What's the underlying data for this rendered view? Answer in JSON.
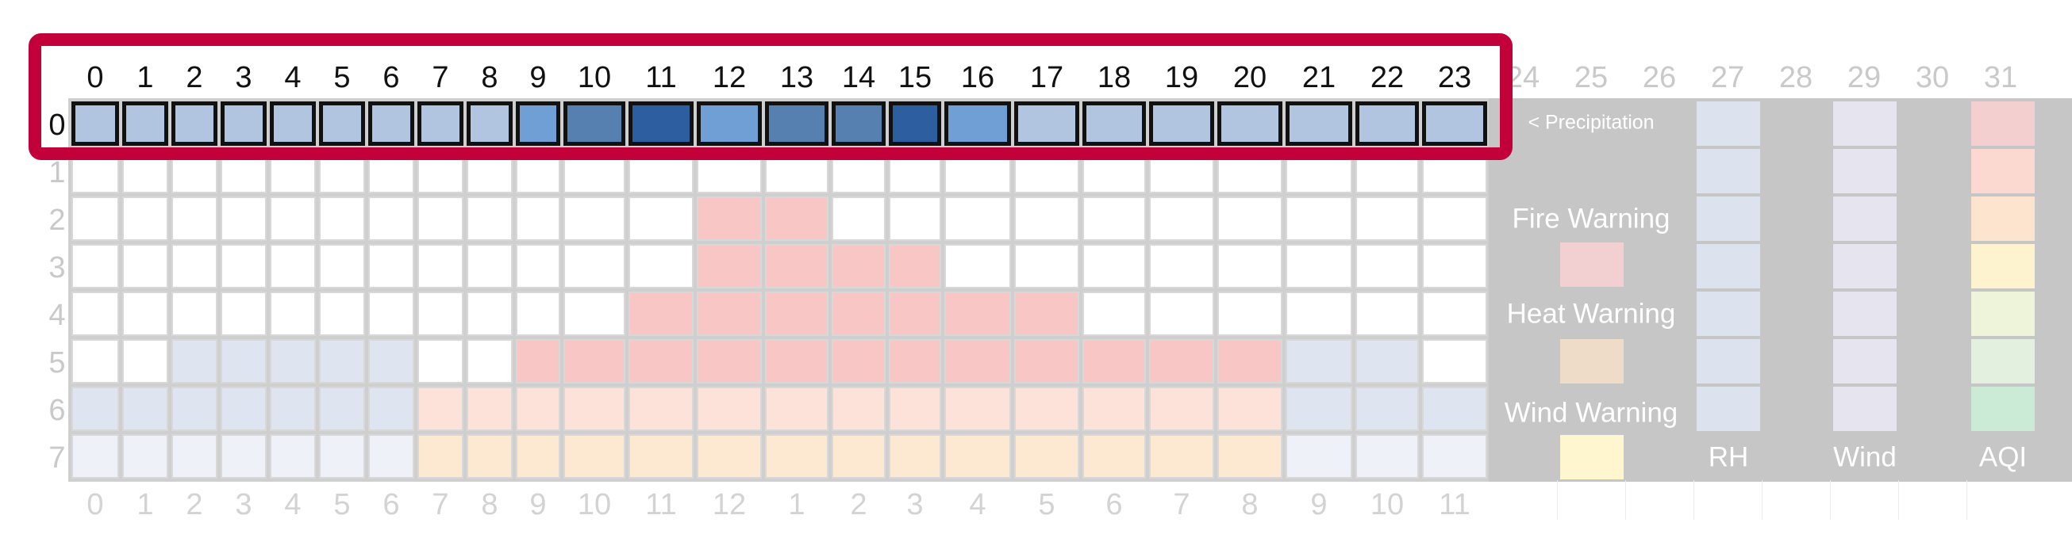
{
  "grid": {
    "columns": 24,
    "rows": 8,
    "top_header": [
      "0",
      "1",
      "2",
      "3",
      "4",
      "5",
      "6",
      "7",
      "8",
      "9",
      "10",
      "11",
      "12",
      "13",
      "14",
      "15",
      "16",
      "17",
      "18",
      "19",
      "20",
      "21",
      "22",
      "23"
    ],
    "row_labels": [
      "0",
      "1",
      "2",
      "3",
      "4",
      "5",
      "6",
      "7"
    ],
    "bottom_labels": [
      "0",
      "1",
      "2",
      "3",
      "4",
      "5",
      "6",
      "7",
      "8",
      "9",
      "10",
      "11",
      "12",
      "1",
      "2",
      "3",
      "4",
      "5",
      "6",
      "7",
      "8",
      "9",
      "10",
      "11"
    ],
    "highlighted_row": 0,
    "precipitation_levels": [
      1,
      1,
      1,
      1,
      1,
      1,
      1,
      1,
      1,
      2,
      3,
      4,
      2,
      3,
      3,
      4,
      2,
      1,
      1,
      1,
      1,
      1,
      1,
      1
    ],
    "precip_colors": [
      "#ffffff",
      "#b2c5e0",
      "#6f9fd4",
      "#5580b0",
      "#2d5fa0"
    ],
    "row_fills": [
      null,
      "WWWWWWWWWWWWWWWWWWWWWWWW",
      "WWWWWWWWWWWWFFWWWWWWWWWW",
      "WWWWWWWWWWWWFFFFWWWWWWWW",
      "WWWWWWWWWWWFFFFFFFWWWWWW",
      "WWBBBBBWWFFFFFFFFFFFFBBW",
      "BBBBBBBSSSSSSSSSSSSSSBBB",
      "CCCCCCCOOOOOOOOOOOOOOCCC"
    ],
    "fill_colors": {
      "W": "#ffffff",
      "F": "#f9c6c6",
      "B": "#dee5f0",
      "S": "#fde2da",
      "O": "#fde8d1",
      "C": "#eef1f7"
    }
  },
  "extra_header": [
    "24",
    "25",
    "26",
    "27",
    "28",
    "29",
    "30",
    "31"
  ],
  "legend": {
    "precipitation_label": "< Precipitation",
    "fire_label": "Fire Warning",
    "heat_label": "Heat Warning",
    "wind_warning_label": "Wind Warning",
    "swatch_colors": {
      "fire": "#f2cfd0",
      "heat": "#efdcc8",
      "wind": "#fdf6cf"
    },
    "rh_label": "RH",
    "wind_label": "Wind",
    "aqi_label": "AQI",
    "rh_colors": [
      "#dde3ee",
      "#dde3ee",
      "#dde3ee",
      "#dde3ee",
      "#dde3ee",
      "#dde3ee",
      "#dde3ee"
    ],
    "wind_colors": [
      "#e6e4ee",
      "#e6e4ee",
      "#e6e4ee",
      "#e6e4ee",
      "#e6e4ee",
      "#e6e4ee",
      "#e6e4ee"
    ],
    "aqi_colors": [
      "#f4cfcf",
      "#fcd9d0",
      "#fde4cf",
      "#fdf4cf",
      "#eef4d9",
      "#e3efdf",
      "#cbebd7"
    ]
  },
  "colors": {
    "highlight": "#c2003a",
    "panel": "#c6c6c6"
  }
}
